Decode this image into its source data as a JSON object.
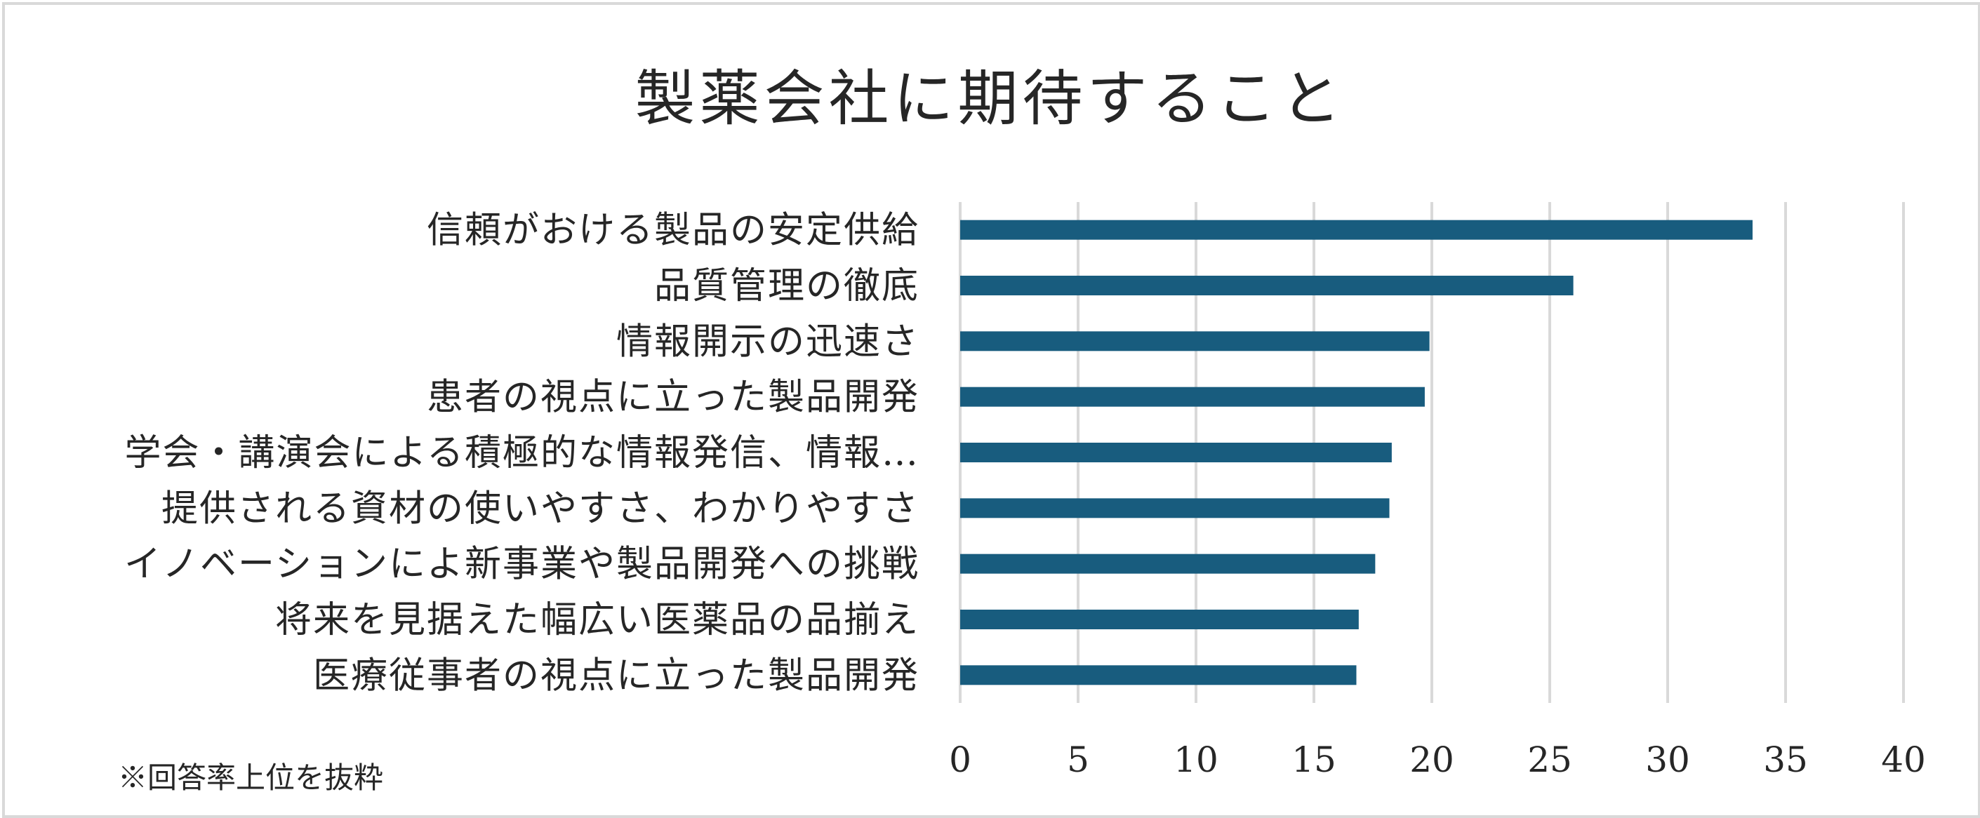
{
  "chart_data": {
    "type": "bar",
    "orientation": "horizontal",
    "title": "製薬会社に期待すること",
    "categories": [
      "信頼がおける製品の安定供給",
      "品質管理の徹底",
      "情報開示の迅速さ",
      "患者の視点に立った製品開発",
      "学会・講演会による積極的な情報発信、情報…",
      "提供される資材の使いやすさ、わかりやすさ",
      "イノベーションによ新事業や製品開発への挑戦",
      "将来を見据えた幅広い医薬品の品揃え",
      "医療従事者の視点に立った製品開発"
    ],
    "values": [
      33.6,
      26.0,
      19.9,
      19.7,
      18.3,
      18.2,
      17.6,
      16.9,
      16.8
    ],
    "xlim": [
      0,
      40
    ],
    "ticks": [
      "0",
      "5",
      "10",
      "15",
      "20",
      "25",
      "30",
      "35",
      "40"
    ],
    "grid": true,
    "bar_color": "#185c7e",
    "footnote": "※回答率上位を抜粋"
  }
}
